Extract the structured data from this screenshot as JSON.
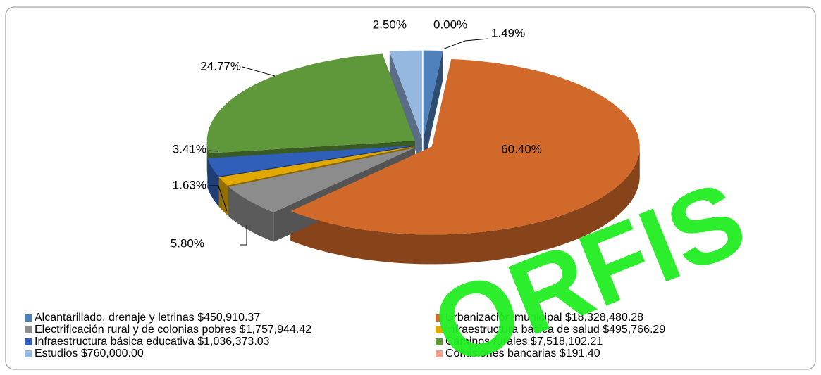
{
  "chart_data": {
    "type": "pie",
    "categories": [
      "Alcantarillado, drenaje y letrinas  $450,910.37",
      "Urbanización municipal $18,328,480.28",
      "Electrificación rural y de colonias pobres $1,757,944.42",
      "Infraestructura básica de salud $495,766.29",
      "Infraestructura básica educativa $1,036,373.03",
      "Caminos rurales $7,518,102.21",
      "Estudios $760,000.00",
      "Comisiones bancarias $191.40"
    ],
    "values": [
      1.49,
      60.4,
      5.8,
      1.63,
      3.41,
      24.77,
      2.5,
      0.0
    ],
    "value_labels": [
      "1.49%",
      "60.40%",
      "5.80%",
      "1.63%",
      "3.41%",
      "24.77%",
      "2.50%",
      "0.00%"
    ],
    "colors": [
      "#4f81bd",
      "#d0692a",
      "#8c8c8c",
      "#e0a800",
      "#2f5fb8",
      "#5f973b",
      "#95b8e0",
      "#f0a08e"
    ]
  },
  "watermark": "ORFIS"
}
